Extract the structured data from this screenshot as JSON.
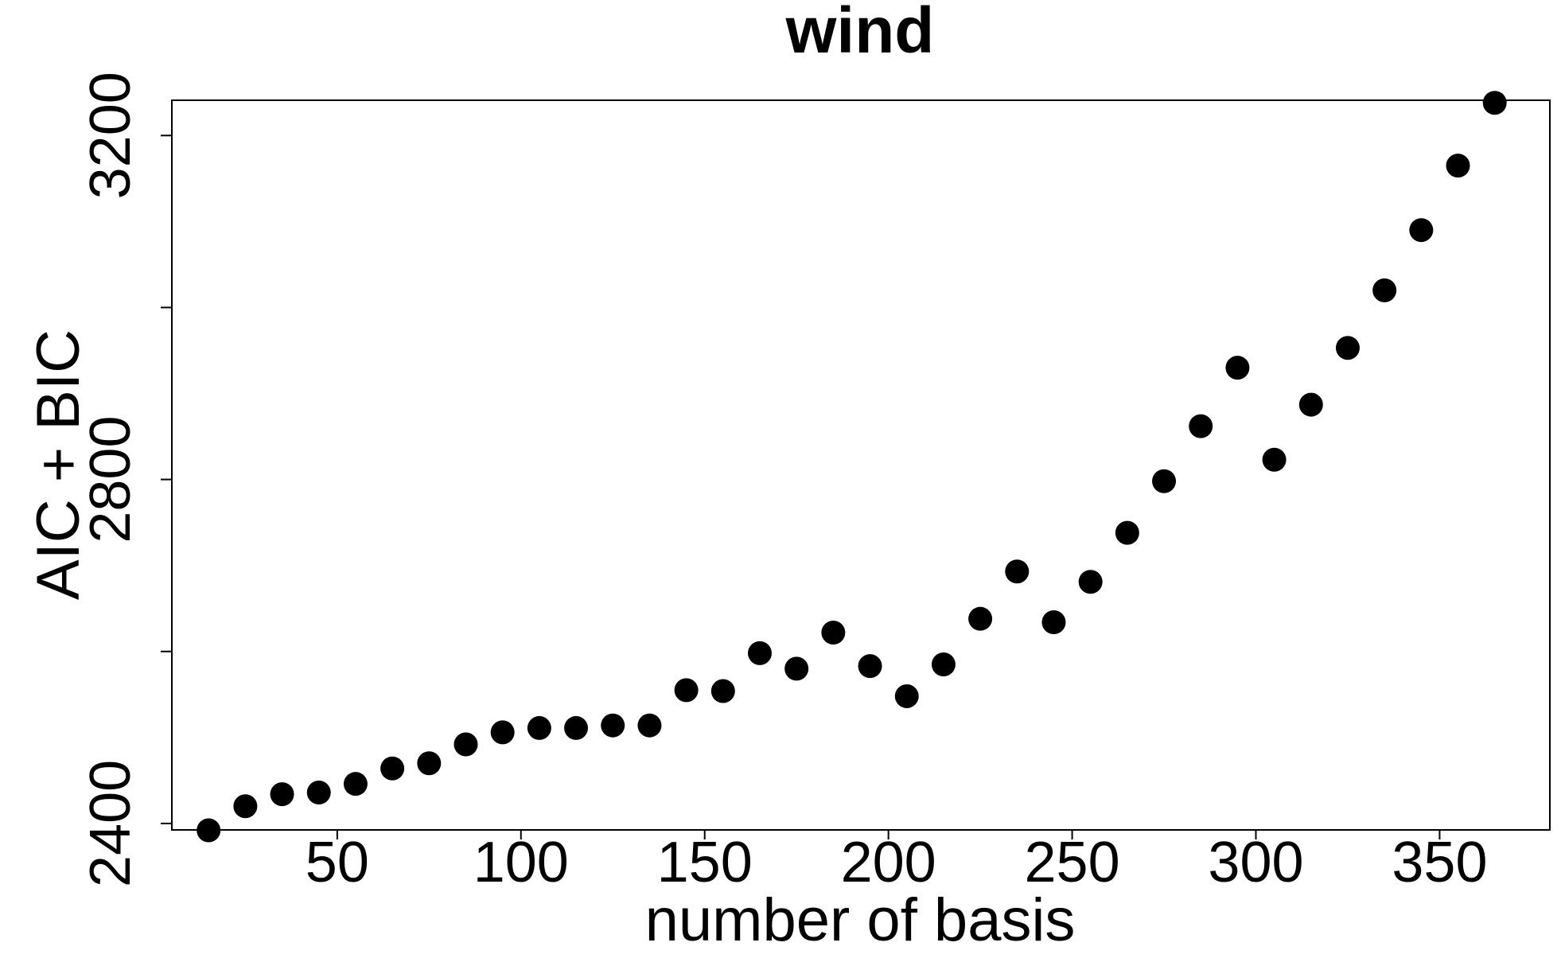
{
  "chart_data": {
    "type": "scatter",
    "title": "wind",
    "xlabel": "number of basis",
    "ylabel": "AIC + BIC",
    "xlim": [
      5,
      380
    ],
    "ylim": [
      2392.5,
      3241
    ],
    "x_ticks": [
      50,
      100,
      150,
      200,
      250,
      300,
      350
    ],
    "x_tick_labels": [
      "50",
      "100",
      "150",
      "200",
      "250",
      "300",
      "350"
    ],
    "y_ticks": [
      2400,
      2600,
      2800,
      3000,
      3200
    ],
    "y_tick_labels": [
      "2400",
      "",
      "2800",
      "",
      "3200"
    ],
    "grid": false,
    "legend": "none",
    "marker_color": "#000000",
    "series": [
      {
        "x": [
          15,
          25,
          35,
          45,
          55,
          65,
          75,
          85,
          95,
          105,
          115,
          125,
          135,
          145,
          155,
          165,
          175,
          185,
          195,
          205,
          215,
          225,
          235,
          245,
          255,
          265,
          275,
          285,
          295,
          305,
          315,
          325,
          335,
          345,
          355,
          365
        ],
        "y": [
          2392,
          2420,
          2434,
          2436,
          2446,
          2464,
          2470,
          2492,
          2506,
          2511,
          2511,
          2514,
          2514,
          2555,
          2554,
          2598,
          2580,
          2622,
          2583,
          2548,
          2585,
          2638,
          2693,
          2634,
          2681,
          2738,
          2798,
          2862,
          2930,
          2823,
          2887,
          2953,
          3020,
          3090,
          3165,
          3238
        ]
      }
    ]
  }
}
